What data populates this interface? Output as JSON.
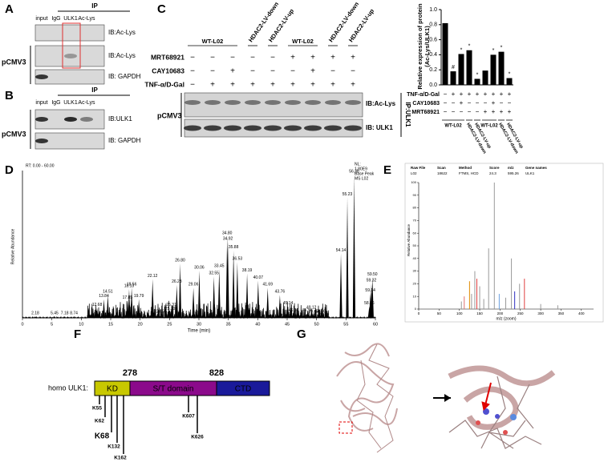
{
  "panel_letters": [
    "A",
    "B",
    "C",
    "D",
    "E",
    "F",
    "G"
  ],
  "panel_a": {
    "ip": "IP",
    "lanes": [
      "input",
      "IgG",
      "ULK1",
      "Ac-Lys"
    ],
    "group": "pCMV3",
    "blots": [
      "IB:Ac-Lys",
      "IB:Ac-Lys",
      "IB: GAPDH"
    ]
  },
  "panel_b": {
    "ip": "IP",
    "lanes": [
      "input",
      "IgG",
      "ULK1",
      "Ac-Lys"
    ],
    "group": "pCMV3",
    "blots": [
      "IB:ULK1",
      "IB: GAPDH"
    ]
  },
  "panel_c": {
    "groups": [
      "WT-L02",
      "HDAC2-LV-down",
      "HDAC2-LV-up",
      "WT-L02",
      "HDAC2-LV-down",
      "HDAC2-LV-up"
    ],
    "conditions": [
      {
        "name": "MRT68921",
        "signs": [
          "−",
          "−",
          "−",
          "−",
          "−",
          "+",
          "+",
          "+",
          "+"
        ]
      },
      {
        "name": "CAY10683",
        "signs": [
          "−",
          "−",
          "+",
          "−",
          "−",
          "−",
          "+",
          "−",
          "−"
        ]
      },
      {
        "name": "TNF-α/D-Gal",
        "signs": [
          "−",
          "+",
          "+",
          "+",
          "+",
          "+",
          "+",
          "+",
          "+"
        ]
      }
    ],
    "group": "pCMV3",
    "blots": [
      "IB:Ac-Lys",
      "IB: ULK1"
    ],
    "ip": "IP:ULK1"
  },
  "chart_data": {
    "type": "bar",
    "y_label": [
      "Relative expression of protein",
      "(Ac-Lys/ULK1)"
    ],
    "categories": [
      null,
      null,
      null,
      null,
      null,
      null,
      null,
      null,
      null
    ],
    "values": [
      0.82,
      0.18,
      0.41,
      0.46,
      0.08,
      0.19,
      0.4,
      0.44,
      0.09
    ],
    "markers": [
      null,
      "#",
      "*",
      "*",
      "*",
      null,
      "*",
      "*",
      "*"
    ],
    "color": "#000000",
    "ylim": [
      0,
      1
    ],
    "yticks": [
      {
        "value": 0,
        "label": "0.0"
      },
      {
        "value": 0.2,
        "label": "0.2"
      },
      {
        "value": 0.4,
        "label": "0.4"
      },
      {
        "value": 0.6,
        "label": "0.6"
      },
      {
        "value": 0.8,
        "label": "0.8"
      },
      {
        "value": 1,
        "label": "1.0"
      }
    ],
    "conditions": [
      {
        "name": "TNF-α/D-Gal",
        "signs": [
          "−",
          "+",
          "+",
          "+",
          "+",
          "+",
          "+",
          "+",
          "+"
        ]
      },
      {
        "name": "CAY10683",
        "signs": [
          "−",
          "−",
          "+",
          "−",
          "−",
          "−",
          "+",
          "−",
          "−"
        ]
      },
      {
        "name": "MRT68921",
        "signs": [
          "−",
          "−",
          "−",
          "−",
          "−",
          "+",
          "+",
          "+",
          "+"
        ]
      }
    ],
    "groups": [
      "WT-L02",
      "HDAC2-LV-down",
      "HDAC2-LV-up",
      "WT-L02",
      "HDAC2-LV-down",
      "HDAC2-LV-up"
    ]
  },
  "panel_d": {
    "rt": "RT: 0.00 - 60.00",
    "nl": [
      "NL:",
      "1.80E9",
      "Base Peak",
      "MS L02"
    ],
    "x_label": "Time (min)",
    "y_label": "Relative Abundance",
    "xlim": [
      0,
      60
    ],
    "xticks": [
      0,
      5,
      10,
      15,
      20,
      25,
      30,
      35,
      40,
      45,
      50,
      55,
      60
    ],
    "ylim": [
      0,
      100
    ],
    "peaks": [
      {
        "value": 2.18,
        "label": "2.18",
        "height": 1
      },
      {
        "value": 5.45,
        "label": "5.45",
        "height": 1
      },
      {
        "value": 7.18,
        "label": "7.18",
        "height": 1
      },
      {
        "value": 8.74,
        "label": "8.74",
        "height": 1
      },
      {
        "value": 12.68,
        "label": "12.68",
        "height": 7
      },
      {
        "value": 13.84,
        "label": "13.84",
        "height": 13
      },
      {
        "value": 14.51,
        "label": "14.51",
        "height": 16
      },
      {
        "value": 17.85,
        "label": "17.85",
        "height": 12
      },
      {
        "value": 18.13,
        "label": "18.13",
        "height": 20
      },
      {
        "value": 18.56,
        "label": "18.56",
        "height": 21
      },
      {
        "value": 19.79,
        "label": "19.79",
        "height": 13
      },
      {
        "value": 22.12,
        "label": "22.12",
        "height": 27
      },
      {
        "value": 23.61,
        "label": "23.61",
        "height": 2
      },
      {
        "value": 25.1,
        "label": "25.10",
        "height": 4
      },
      {
        "value": 25.31,
        "label": "25.31",
        "height": 7
      },
      {
        "value": 26.23,
        "label": "26.23",
        "height": 23
      },
      {
        "value": 26.8,
        "label": "26.80",
        "height": 38
      },
      {
        "value": 29.06,
        "label": "29.06",
        "height": 21
      },
      {
        "value": 30.06,
        "label": "30.06",
        "height": 33
      },
      {
        "value": 32.55,
        "label": "32.55",
        "height": 29
      },
      {
        "value": 33.45,
        "label": "33.45",
        "height": 34
      },
      {
        "value": 34.8,
        "label": "34.80",
        "height": 57
      },
      {
        "value": 34.92,
        "label": "34.92",
        "height": 53
      },
      {
        "value": 35.88,
        "label": "35.88",
        "height": 47
      },
      {
        "value": 36.53,
        "label": "36.53",
        "height": 39
      },
      {
        "value": 38.19,
        "label": "38.19",
        "height": 31
      },
      {
        "value": 40.07,
        "label": "40.07",
        "height": 26
      },
      {
        "value": 41.69,
        "label": "41.69",
        "height": 21
      },
      {
        "value": 43.76,
        "label": "43.76",
        "height": 16
      },
      {
        "value": 45.14,
        "label": "45.14",
        "height": 8
      },
      {
        "value": 46.09,
        "label": "46.09",
        "height": 3
      },
      {
        "value": 48.34,
        "label": "48.34",
        "height": 3
      },
      {
        "value": 49.12,
        "label": "49.12",
        "height": 5
      },
      {
        "value": 49.45,
        "label": "49.45",
        "height": 2
      },
      {
        "value": 50.66,
        "label": "50.66",
        "height": 2
      },
      {
        "value": 51.26,
        "label": "51.26",
        "height": 0.5
      },
      {
        "value": 54.14,
        "label": "54.14",
        "height": 45
      },
      {
        "value": 55.23,
        "label": "55.23",
        "height": 84
      },
      {
        "value": 56.38,
        "label": "56.38",
        "height": 100
      },
      {
        "value": 58.96,
        "label": "58.96",
        "height": 8
      },
      {
        "value": 59.14,
        "label": "59.14",
        "height": 17
      },
      {
        "value": 59.32,
        "label": "59.32",
        "height": 24
      },
      {
        "value": 59.5,
        "label": "59.50",
        "height": 28
      }
    ]
  },
  "panel_e": {
    "headers": [
      "Raw File",
      "Scan",
      "Method",
      "Score",
      "m/z",
      "Gene names"
    ],
    "row": [
      "L02",
      "18622",
      "FTMS, HCD",
      "24.3",
      "595.26",
      "ULK1"
    ],
    "x_label": "m/z (zoom)",
    "y_label": "Relative Abundance",
    "xlim": [
      0,
      430
    ],
    "xticks": [
      0,
      50,
      100,
      150,
      200,
      250,
      300,
      350,
      400
    ],
    "ylim": [
      0,
      100
    ],
    "yticks": [
      0,
      10,
      20,
      30,
      40,
      50,
      60,
      70,
      80,
      90,
      100
    ],
    "peaks": [
      {
        "mz": 105,
        "height": 6,
        "color": "#999999"
      },
      {
        "mz": 112,
        "height": 10,
        "color": "#e07070"
      },
      {
        "mz": 125,
        "height": 22,
        "color": "#e08a00"
      },
      {
        "mz": 130,
        "height": 12,
        "color": "#999999"
      },
      {
        "mz": 138,
        "height": 30,
        "color": "#999999"
      },
      {
        "mz": 143,
        "height": 24,
        "color": "#e04040"
      },
      {
        "mz": 150,
        "height": 18,
        "color": "#999999"
      },
      {
        "mz": 160,
        "height": 8,
        "color": "#999999"
      },
      {
        "mz": 172,
        "height": 48,
        "color": "#999999"
      },
      {
        "mz": 186,
        "height": 100,
        "color": "#999999"
      },
      {
        "mz": 198,
        "height": 12,
        "color": "#6aa0e0"
      },
      {
        "mz": 214,
        "height": 9,
        "color": "#999999"
      },
      {
        "mz": 228,
        "height": 40,
        "color": "#999999"
      },
      {
        "mz": 236,
        "height": 14,
        "color": "#3030c0"
      },
      {
        "mz": 248,
        "height": 20,
        "color": "#999999"
      },
      {
        "mz": 260,
        "height": 24,
        "color": "#e04040"
      },
      {
        "mz": 300,
        "height": 4,
        "color": "#999999"
      },
      {
        "mz": 342,
        "height": 3,
        "color": "#999999"
      }
    ]
  },
  "panel_f": {
    "protein": "homo ULK1:",
    "domains": [
      {
        "name": "KD",
        "color": "#c8c800"
      },
      {
        "name": "S/T domain",
        "color": "#8b0a8b"
      },
      {
        "name": "CTD",
        "color": "#1a1a9a"
      }
    ],
    "boundaries": [
      278,
      828
    ],
    "sites": [
      {
        "label": "K55",
        "color": "#000000"
      },
      {
        "label": "K62",
        "color": "#000000"
      },
      {
        "label": "K68",
        "color": "#e00000"
      },
      {
        "label": "K132",
        "color": "#000000"
      },
      {
        "label": "K162",
        "color": "#000000"
      },
      {
        "label": "K607",
        "color": "#000000"
      },
      {
        "label": "K626",
        "color": "#000000"
      }
    ]
  }
}
